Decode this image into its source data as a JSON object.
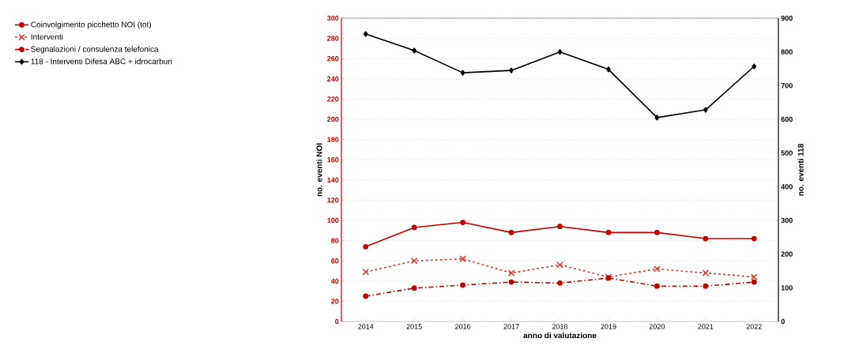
{
  "chart_data": {
    "type": "line",
    "xlabel": "anno di valutazione",
    "ylabel": "no. eventi NOI",
    "y2label": "no. eventi 118",
    "categories": [
      "2014",
      "2015",
      "2016",
      "2017",
      "2018",
      "2019",
      "2020",
      "2021",
      "2022"
    ],
    "series": [
      {
        "name": "Coinvolgimento picchetto NOI (tot)",
        "color": "#c00000",
        "marker": "circle",
        "line_style": "solid",
        "values": [
          74,
          93,
          98,
          88,
          94,
          88,
          88,
          82,
          82
        ]
      },
      {
        "name": "Interventi",
        "color": "#d9403a",
        "marker": "cross",
        "line_style": "dashed",
        "values": [
          49,
          60,
          62,
          48,
          56,
          44,
          52,
          48,
          44
        ]
      },
      {
        "name": "Segnalazioni / consulenza telefonica",
        "color": "#c00000",
        "marker": "circle",
        "line_style": "dashdot",
        "values": [
          25,
          33,
          36,
          39,
          38,
          43,
          35,
          35,
          39
        ]
      },
      {
        "name": "118 - Interventi Difesa ABC + idrocarburi",
        "color": "#000000",
        "marker": "diamond",
        "line_style": "solid",
        "axis": "y2",
        "values": [
          853,
          804,
          738,
          745,
          800,
          748,
          605,
          628,
          757
        ]
      }
    ],
    "ylim": [
      0,
      300
    ],
    "yticks": [
      0,
      20,
      40,
      60,
      80,
      100,
      120,
      140,
      160,
      180,
      200,
      220,
      240,
      260,
      280,
      300
    ],
    "y2lim": [
      0,
      900
    ],
    "y2ticks": [
      0,
      100,
      200,
      300,
      400,
      500,
      600,
      700,
      800,
      900
    ],
    "grid": "y",
    "legend": "left"
  }
}
